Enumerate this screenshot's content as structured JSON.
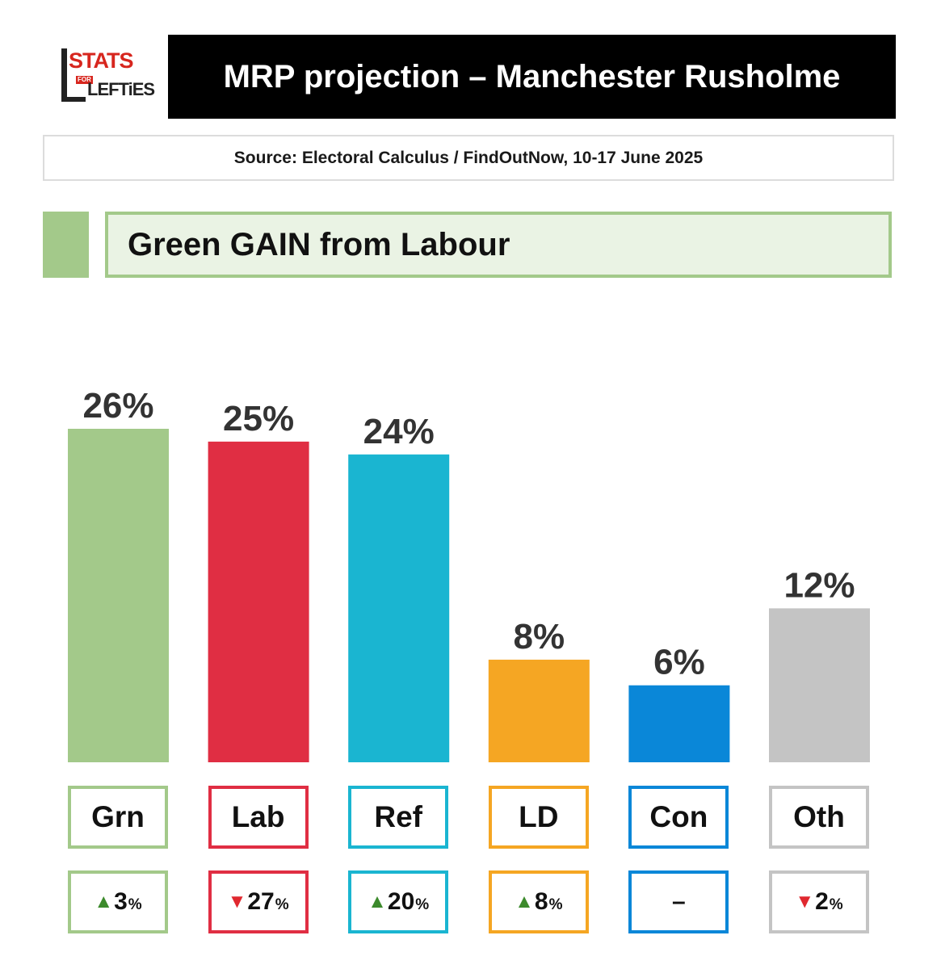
{
  "logo": {
    "line1": "STATS",
    "for": "FOR",
    "line2": "LEFTiES"
  },
  "header": {
    "title": "MRP projection – Manchester Rusholme"
  },
  "source": {
    "text": "Source: Electoral Calculus / FindOutNow, 10-17 June 2025"
  },
  "verdict": {
    "text": "Green GAIN from Labour",
    "color": "#a3c98a"
  },
  "chart_data": {
    "type": "bar",
    "categories": [
      "Grn",
      "Lab",
      "Ref",
      "LD",
      "Con",
      "Oth"
    ],
    "values": [
      26,
      25,
      24,
      8,
      6,
      12
    ],
    "value_labels": [
      "26%",
      "25%",
      "24%",
      "8%",
      "6%",
      "12%"
    ],
    "colors": [
      "#a3c98a",
      "#e02e43",
      "#1ab5d1",
      "#f5a623",
      "#0a87d8",
      "#c4c4c4"
    ],
    "changes": [
      {
        "dir": "up",
        "value": "3",
        "unit": "%"
      },
      {
        "dir": "down",
        "value": "27",
        "unit": "%"
      },
      {
        "dir": "up",
        "value": "20",
        "unit": "%"
      },
      {
        "dir": "up",
        "value": "8",
        "unit": "%"
      },
      {
        "dir": "none",
        "value": "–",
        "unit": ""
      },
      {
        "dir": "down",
        "value": "2",
        "unit": "%"
      }
    ],
    "ylim": [
      0,
      26
    ],
    "grid": false
  }
}
